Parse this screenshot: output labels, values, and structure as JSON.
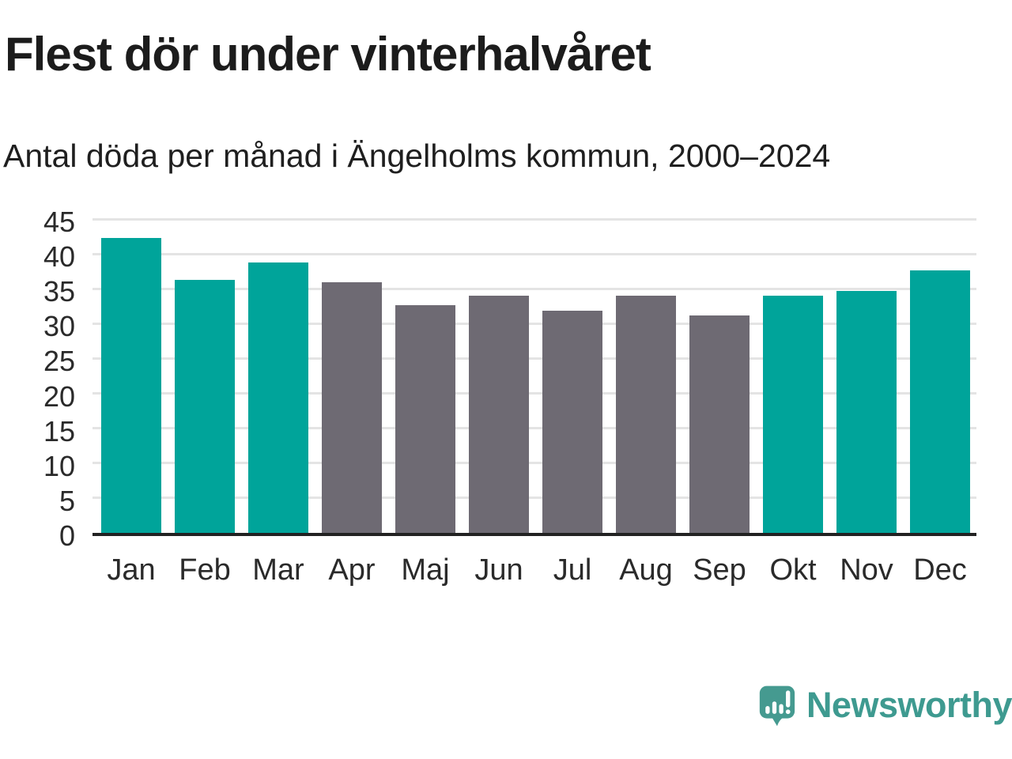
{
  "page": {
    "title": "Flest dör under vinterhalvåret",
    "subtitle": "Antal döda per månad i Ängelholms kommun, 2000–2024"
  },
  "brand": {
    "name": "Newsworthy",
    "icon": "newsworthy-speech-bubble-bar-chart-icon",
    "wordmark_color": "#3e9a90",
    "icon_color": "#459a90"
  },
  "colors": {
    "winter": "#00a49a",
    "summer": "#6e6a73",
    "grid": "#e4e4e4",
    "axis": "#222222",
    "label_text": "#2a2a2a"
  },
  "chart_data": {
    "type": "bar",
    "title": "Flest dör under vinterhalvåret",
    "subtitle": "Antal döda per månad i Ängelholms kommun, 2000–2024",
    "categories": [
      "Jan",
      "Feb",
      "Mar",
      "Apr",
      "Maj",
      "Jun",
      "Jul",
      "Aug",
      "Sep",
      "Okt",
      "Nov",
      "Dec"
    ],
    "values": [
      42.3,
      36.3,
      38.8,
      35.9,
      32.6,
      34.0,
      31.8,
      34.0,
      31.2,
      34.0,
      34.7,
      37.6
    ],
    "bar_colors": [
      "winter",
      "winter",
      "winter",
      "summer",
      "summer",
      "summer",
      "summer",
      "summer",
      "summer",
      "winter",
      "winter",
      "winter"
    ],
    "xlabel": "",
    "ylabel": "",
    "ylim": [
      0,
      45
    ],
    "yticks": [
      0,
      5,
      10,
      15,
      20,
      25,
      30,
      35,
      40,
      45
    ],
    "grid": true,
    "legend_position": "none"
  }
}
